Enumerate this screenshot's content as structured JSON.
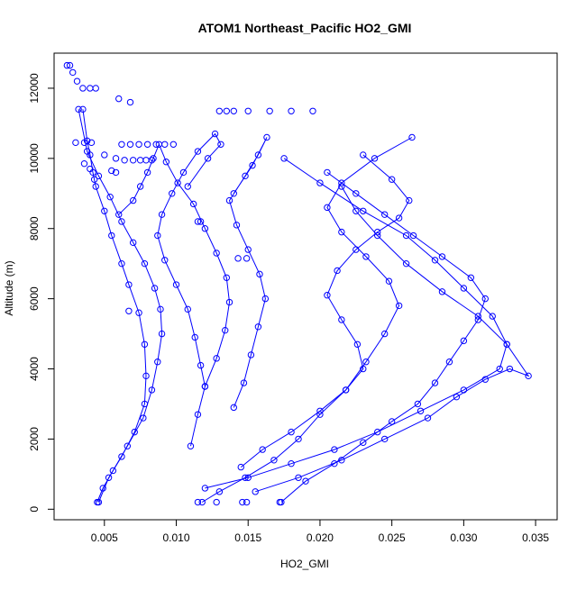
{
  "chart_data": {
    "type": "scatter",
    "title": "ATOM1 Northeast_Pacific HO2_GMI",
    "xlabel": "HO2_GMI",
    "ylabel": "Altitude (m)",
    "xlim": [
      0.0015,
      0.0365
    ],
    "ylim": [
      -300,
      13000
    ],
    "xticks": [
      "0.005",
      "0.010",
      "0.015",
      "0.020",
      "0.025",
      "0.030",
      "0.035"
    ],
    "xtick_values": [
      0.005,
      0.01,
      0.015,
      0.02,
      0.025,
      0.03,
      0.035
    ],
    "yticks": [
      "0",
      "2000",
      "4000",
      "6000",
      "8000",
      "10000",
      "12000"
    ],
    "ytick_values": [
      0,
      2000,
      4000,
      6000,
      8000,
      10000,
      12000
    ],
    "series_style": {
      "color": "#0000ff",
      "marker": "open-circle",
      "line": "solid"
    },
    "series": [
      {
        "x": [
          0.0046,
          0.0053,
          0.0062,
          0.0071,
          0.0078,
          0.0079,
          0.0078,
          0.0074,
          0.0067,
          0.0062,
          0.0055,
          0.005,
          0.0044,
          0.0042,
          0.004,
          0.0038,
          0.0035
        ],
        "y": [
          200,
          900,
          1500,
          2200,
          3000,
          3800,
          4700,
          5600,
          6400,
          7000,
          7800,
          8500,
          9200,
          9600,
          10100,
          10500,
          11400
        ]
      },
      {
        "x": [
          0.0045,
          0.0049,
          0.0056,
          0.0066,
          0.0077,
          0.0083,
          0.0087,
          0.009,
          0.0089,
          0.0085,
          0.0078,
          0.007,
          0.0062,
          0.0054,
          0.0046,
          0.0038,
          0.0032
        ],
        "y": [
          200,
          600,
          1100,
          1800,
          2600,
          3400,
          4200,
          5000,
          5700,
          6300,
          7000,
          7600,
          8200,
          8900,
          9500,
          10200,
          11400
        ]
      },
      {
        "x": [
          0.011,
          0.0115,
          0.012,
          0.0117,
          0.0113,
          0.0108,
          0.01,
          0.0092,
          0.0087,
          0.009,
          0.0097,
          0.0105,
          0.0115,
          0.0127,
          0.0131,
          0.0122,
          0.0108
        ],
        "y": [
          1800,
          2700,
          3500,
          4100,
          4900,
          5700,
          6400,
          7100,
          7800,
          8400,
          9000,
          9600,
          10200,
          10700,
          10400,
          10000,
          9200
        ]
      },
      {
        "x": [
          0.012,
          0.0128,
          0.0134,
          0.0137,
          0.0135,
          0.0128,
          0.012,
          0.0112,
          0.0101,
          0.0093,
          0.0088,
          0.0084,
          0.008,
          0.0075,
          0.007,
          0.006
        ],
        "y": [
          3500,
          4300,
          5100,
          5900,
          6600,
          7300,
          8000,
          8700,
          9300,
          9900,
          10400,
          10000,
          9600,
          9200,
          8800,
          8400
        ]
      },
      {
        "x": [
          0.014,
          0.0147,
          0.0152,
          0.0157,
          0.0162,
          0.0158,
          0.015,
          0.0142,
          0.0137,
          0.0148,
          0.0157,
          0.0163,
          0.0153,
          0.014
        ],
        "y": [
          2900,
          3600,
          4400,
          5200,
          6000,
          6700,
          7400,
          8100,
          8800,
          9500,
          10100,
          10600,
          9800,
          9000
        ]
      },
      {
        "x": [
          0.012,
          0.015,
          0.018,
          0.021,
          0.024,
          0.027,
          0.03,
          0.0325,
          0.033,
          0.032,
          0.03,
          0.028,
          0.026,
          0.023,
          0.02,
          0.0175
        ],
        "y": [
          600,
          900,
          1300,
          1700,
          2200,
          2800,
          3400,
          4000,
          4700,
          5500,
          6300,
          7100,
          7800,
          8500,
          9300,
          10000
        ]
      },
      {
        "x": [
          0.0155,
          0.0185,
          0.0215,
          0.0245,
          0.0275,
          0.0295,
          0.0315,
          0.0332,
          0.0345,
          0.033,
          0.031,
          0.0285,
          0.026,
          0.024,
          0.0225,
          0.0215
        ],
        "y": [
          500,
          900,
          1400,
          2000,
          2600,
          3200,
          3700,
          4000,
          3800,
          4700,
          5500,
          6200,
          7000,
          7800,
          8500,
          9200
        ]
      },
      {
        "x": [
          0.0173,
          0.019,
          0.021,
          0.023,
          0.025,
          0.0268,
          0.028,
          0.029,
          0.03,
          0.031,
          0.0315,
          0.0305,
          0.0285,
          0.0265,
          0.0245,
          0.0225,
          0.0205
        ],
        "y": [
          200,
          800,
          1300,
          1900,
          2500,
          3000,
          3600,
          4200,
          4800,
          5400,
          6000,
          6600,
          7200,
          7800,
          8400,
          9000,
          9600
        ]
      },
      {
        "x": [
          0.0145,
          0.016,
          0.018,
          0.02,
          0.0218,
          0.023,
          0.0226,
          0.0215,
          0.0205,
          0.0212,
          0.0225,
          0.024,
          0.0255,
          0.0262,
          0.025,
          0.023
        ],
        "y": [
          1200,
          1700,
          2200,
          2800,
          3400,
          4000,
          4700,
          5400,
          6100,
          6800,
          7400,
          7900,
          8300,
          8800,
          9400,
          10100
        ]
      },
      {
        "x": [
          0.0118,
          0.013,
          0.0148,
          0.0168,
          0.0185,
          0.02,
          0.0218,
          0.0232,
          0.0245,
          0.0255,
          0.0248,
          0.0232,
          0.0215,
          0.0205,
          0.0215,
          0.0238,
          0.0264
        ],
        "y": [
          200,
          500,
          900,
          1400,
          2000,
          2700,
          3400,
          4200,
          5000,
          5800,
          6500,
          7200,
          7900,
          8600,
          9300,
          10000,
          10600
        ]
      }
    ],
    "extra_points": [
      {
        "x": 0.0024,
        "y": 12650
      },
      {
        "x": 0.0026,
        "y": 12650
      },
      {
        "x": 0.0028,
        "y": 12450
      },
      {
        "x": 0.0031,
        "y": 12200
      },
      {
        "x": 0.0035,
        "y": 12000
      },
      {
        "x": 0.004,
        "y": 12000
      },
      {
        "x": 0.0044,
        "y": 12000
      },
      {
        "x": 0.006,
        "y": 11700
      },
      {
        "x": 0.0068,
        "y": 11600
      },
      {
        "x": 0.013,
        "y": 11350
      },
      {
        "x": 0.0135,
        "y": 11350
      },
      {
        "x": 0.015,
        "y": 11350
      },
      {
        "x": 0.0165,
        "y": 11350
      },
      {
        "x": 0.018,
        "y": 11350
      },
      {
        "x": 0.0195,
        "y": 11350
      },
      {
        "x": 0.003,
        "y": 10450
      },
      {
        "x": 0.0036,
        "y": 10450
      },
      {
        "x": 0.0041,
        "y": 10450
      },
      {
        "x": 0.005,
        "y": 10100
      },
      {
        "x": 0.0058,
        "y": 10000
      },
      {
        "x": 0.0064,
        "y": 9950
      },
      {
        "x": 0.007,
        "y": 9950
      },
      {
        "x": 0.0075,
        "y": 9950
      },
      {
        "x": 0.0079,
        "y": 9950
      },
      {
        "x": 0.0083,
        "y": 9950
      },
      {
        "x": 0.0036,
        "y": 9850
      },
      {
        "x": 0.004,
        "y": 9700
      },
      {
        "x": 0.0055,
        "y": 9650
      },
      {
        "x": 0.0058,
        "y": 9600
      },
      {
        "x": 0.0043,
        "y": 9400
      },
      {
        "x": 0.0062,
        "y": 10400
      },
      {
        "x": 0.0068,
        "y": 10400
      },
      {
        "x": 0.0074,
        "y": 10400
      },
      {
        "x": 0.008,
        "y": 10400
      },
      {
        "x": 0.0086,
        "y": 10400
      },
      {
        "x": 0.0092,
        "y": 10400
      },
      {
        "x": 0.0098,
        "y": 10400
      },
      {
        "x": 0.0067,
        "y": 5650
      },
      {
        "x": 0.0115,
        "y": 8200
      },
      {
        "x": 0.0117,
        "y": 8200
      },
      {
        "x": 0.0143,
        "y": 7150
      },
      {
        "x": 0.0149,
        "y": 7150
      },
      {
        "x": 0.0115,
        "y": 200
      },
      {
        "x": 0.0128,
        "y": 200
      },
      {
        "x": 0.0146,
        "y": 200
      },
      {
        "x": 0.0149,
        "y": 200
      },
      {
        "x": 0.0172,
        "y": 200
      },
      {
        "x": 0.014,
        "y": 11350
      }
    ]
  }
}
